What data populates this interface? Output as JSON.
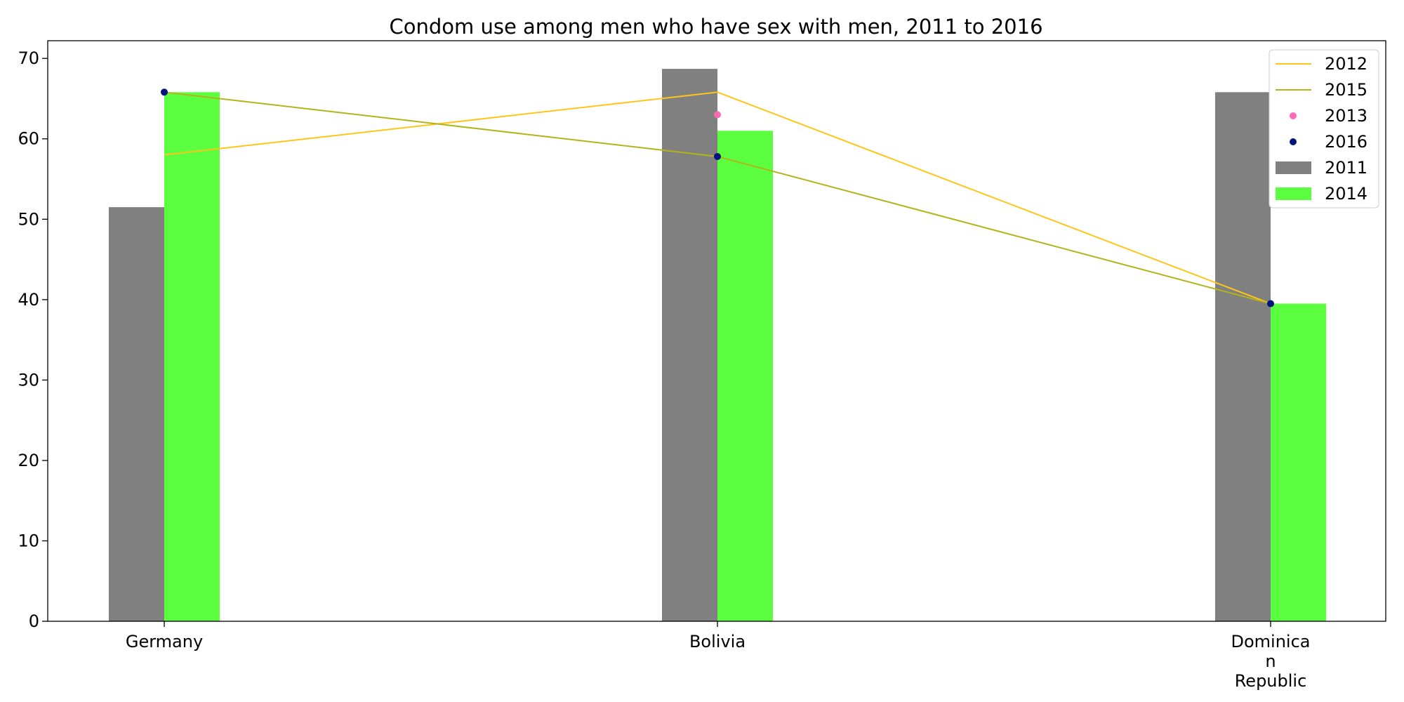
{
  "chart_data": {
    "type": "bar",
    "title": "Condom use among men who have sex with men, 2011 to 2016",
    "xlabel": "",
    "ylabel": "",
    "categories": [
      "Germany",
      "Bolivia",
      "Dominican Republic"
    ],
    "category_tick_lines": [
      [
        "Germany"
      ],
      [
        "Bolivia"
      ],
      [
        "Dominica",
        "n",
        "Republic"
      ]
    ],
    "ylim": [
      0,
      72.2
    ],
    "y_ticks": [
      0,
      10,
      20,
      30,
      40,
      50,
      60,
      70
    ],
    "grid": false,
    "legend_position": "top-right",
    "series": [
      {
        "name": "2011",
        "kind": "bar",
        "color": "#808080",
        "values": [
          51.5,
          68.7,
          65.8
        ]
      },
      {
        "name": "2014",
        "kind": "bar",
        "color": "#5cff3f",
        "values": [
          65.8,
          61.0,
          39.5
        ]
      },
      {
        "name": "2012",
        "kind": "line",
        "color": "#ffc61a",
        "values": [
          58.0,
          65.8,
          39.5
        ]
      },
      {
        "name": "2015",
        "kind": "line",
        "color": "#b3b31a",
        "values": [
          65.8,
          57.8,
          39.5
        ]
      },
      {
        "name": "2013",
        "kind": "scatter",
        "color": "#ff69b4",
        "values": [
          null,
          63.0,
          null
        ]
      },
      {
        "name": "2016",
        "kind": "scatter",
        "color": "#00137f",
        "values": [
          65.8,
          57.8,
          39.5
        ]
      }
    ],
    "legend_order": [
      "2012",
      "2015",
      "2013",
      "2016",
      "2011",
      "2014"
    ]
  }
}
